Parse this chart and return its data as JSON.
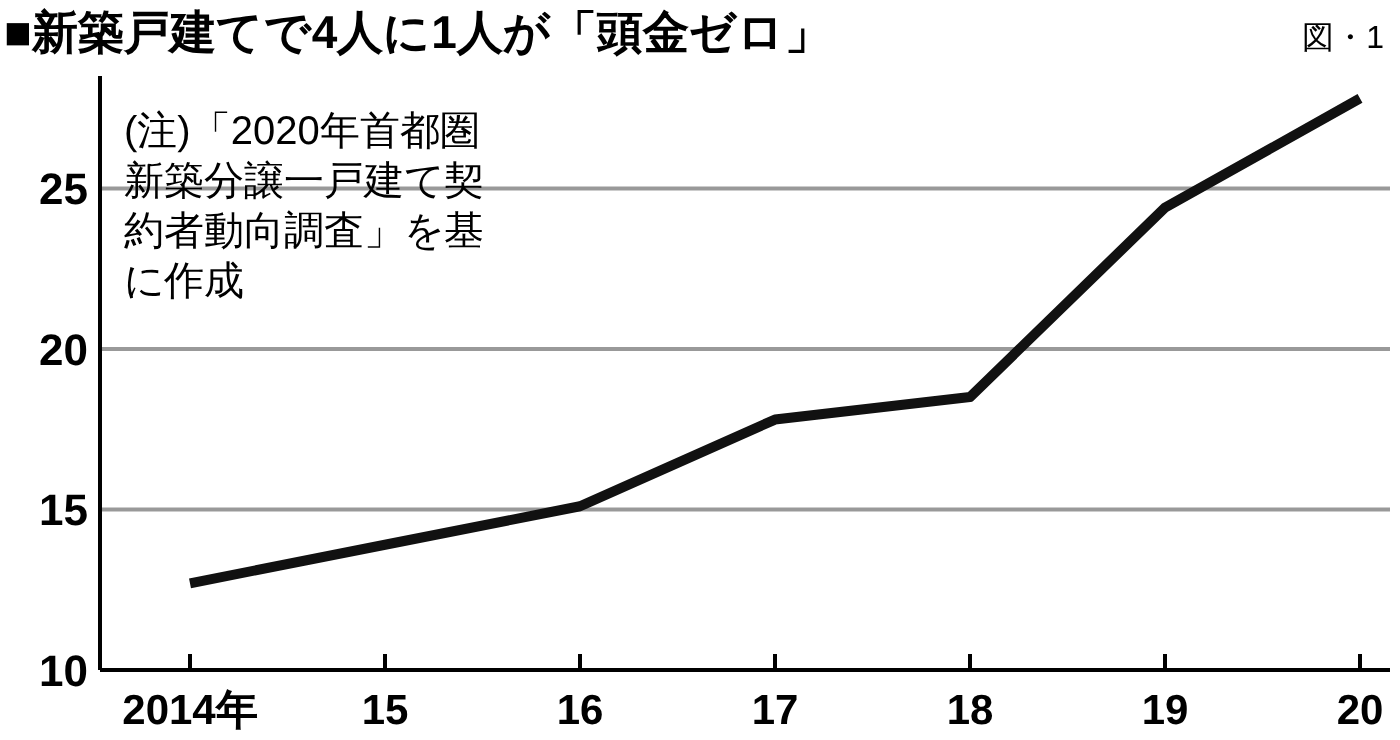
{
  "chart_data": {
    "type": "line",
    "title": "■新築戸建てで4人に1人が「頭金ゼロ」",
    "annotations": [
      "図・1",
      "(注)「2020年首都圏新築分譲一戸建て契約者動向調査」を基に作成"
    ],
    "categories": [
      "2014年",
      "15",
      "16",
      "17",
      "18",
      "19",
      "20"
    ],
    "values": [
      12.7,
      13.9,
      15.1,
      17.8,
      18.5,
      24.4,
      27.8
    ],
    "color": "#111111",
    "ylim": [
      10,
      28.5
    ],
    "yticks": [
      10,
      15,
      20,
      25
    ],
    "grid": "y"
  }
}
